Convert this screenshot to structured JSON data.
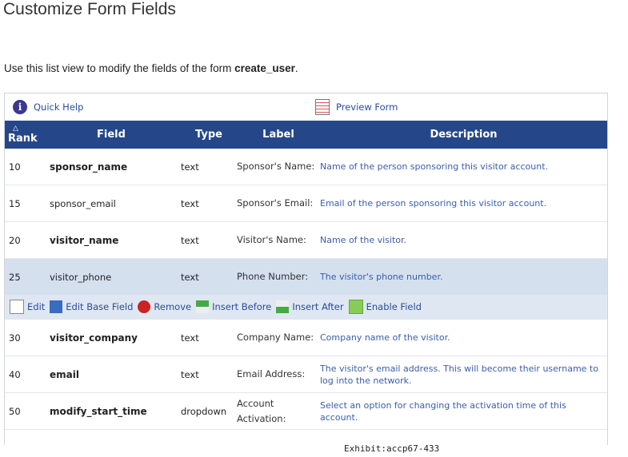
{
  "page": {
    "title": "Customize Form Fields",
    "intro_prefix": "Use this list view to modify the fields of the form ",
    "form_name": "create_user",
    "intro_suffix": "."
  },
  "toolbar": {
    "quick_help": "Quick Help",
    "preview_form": "Preview Form"
  },
  "table": {
    "sort_indicator": "△",
    "columns": [
      "Rank",
      "Field",
      "Type",
      "Label",
      "Description"
    ],
    "rows": [
      {
        "rank": "10",
        "field": "sponsor_name",
        "bold": true,
        "type": "text",
        "label": "Sponsor's Name:",
        "description": "Name of the person sponsoring this visitor account."
      },
      {
        "rank": "15",
        "field": "sponsor_email",
        "bold": false,
        "type": "text",
        "label": "Sponsor's Email:",
        "description": "Email of the person sponsoring this visitor account."
      },
      {
        "rank": "20",
        "field": "visitor_name",
        "bold": true,
        "type": "text",
        "label": "Visitor's Name:",
        "description": "Name of the visitor."
      },
      {
        "rank": "25",
        "field": "visitor_phone",
        "bold": false,
        "selected": true,
        "type": "text",
        "label": "Phone Number:",
        "description": "The visitor's phone number."
      },
      {
        "rank": "30",
        "field": "visitor_company",
        "bold": true,
        "type": "text",
        "label": "Company Name:",
        "description": "Company name of the visitor."
      },
      {
        "rank": "40",
        "field": "email",
        "bold": true,
        "type": "text",
        "label": "Email Address:",
        "description": "The visitor's email address. This will become their username to log into the network."
      },
      {
        "rank": "50",
        "field": "modify_start_time",
        "bold": true,
        "type": "dropdown",
        "label": "Account Activation:",
        "description": "Select an option for changing the activation time of this account."
      }
    ],
    "actions": [
      {
        "label": "Edit",
        "icon": "edit-icon"
      },
      {
        "label": "Edit Base Field",
        "icon": "edit-base-field-icon"
      },
      {
        "label": "Remove",
        "icon": "remove-icon"
      },
      {
        "label": "Insert Before",
        "icon": "insert-before-icon"
      },
      {
        "label": "Insert After",
        "icon": "insert-after-icon"
      },
      {
        "label": "Enable Field",
        "icon": "enable-field-icon"
      }
    ]
  },
  "exhibit": "Exhibit:accp67-433",
  "colors": {
    "header": "#25478a",
    "selected_row": "#d5e0ef",
    "link": "#2b4c9a"
  }
}
